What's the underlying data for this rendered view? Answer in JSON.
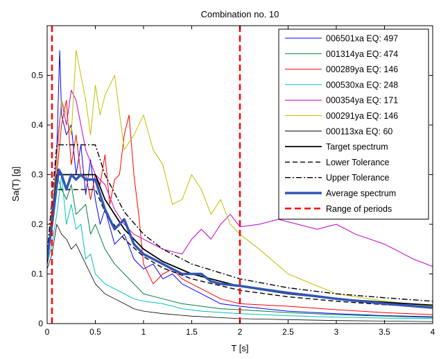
{
  "chart_data": {
    "type": "line",
    "title": "Combination no. 10",
    "xlabel": "T [s]",
    "ylabel": "Sa(T) [g]",
    "xlim": [
      0,
      4
    ],
    "ylim": [
      0,
      0.6
    ],
    "x_ticks": [
      "0",
      "0.5",
      "1",
      "1.5",
      "2",
      "2.5",
      "3",
      "3.5",
      "4"
    ],
    "y_ticks": [
      "0",
      "0.1",
      "0.2",
      "0.3",
      "0.4",
      "0.5"
    ],
    "grid": false,
    "legend_position": "top-right",
    "series": [
      {
        "name": "006501xa EQ: 497",
        "color": "#0000ff",
        "style": "solid",
        "width": 1,
        "x": [
          0,
          0.05,
          0.1,
          0.13,
          0.15,
          0.2,
          0.25,
          0.3,
          0.35,
          0.4,
          0.45,
          0.5,
          0.55,
          0.6,
          0.7,
          0.8,
          0.9,
          1.0,
          1.1,
          1.2,
          1.3,
          1.4,
          1.5,
          1.6,
          1.8,
          2.0,
          2.5,
          3.0,
          3.5,
          4.0
        ],
        "y": [
          0.13,
          0.2,
          0.35,
          0.55,
          0.42,
          0.38,
          0.4,
          0.3,
          0.36,
          0.26,
          0.33,
          0.25,
          0.2,
          0.23,
          0.16,
          0.18,
          0.13,
          0.11,
          0.12,
          0.09,
          0.1,
          0.08,
          0.07,
          0.06,
          0.04,
          0.035,
          0.025,
          0.02,
          0.016,
          0.014
        ]
      },
      {
        "name": "001314ya EQ: 474",
        "color": "#007f40",
        "style": "solid",
        "width": 1,
        "x": [
          0,
          0.05,
          0.1,
          0.15,
          0.2,
          0.25,
          0.3,
          0.35,
          0.4,
          0.45,
          0.5,
          0.6,
          0.7,
          0.8,
          0.9,
          1.0,
          1.2,
          1.4,
          1.6,
          1.8,
          2.0,
          2.5,
          3.0,
          3.5,
          4.0
        ],
        "y": [
          0.13,
          0.2,
          0.3,
          0.27,
          0.25,
          0.28,
          0.22,
          0.23,
          0.24,
          0.18,
          0.2,
          0.15,
          0.12,
          0.1,
          0.08,
          0.06,
          0.05,
          0.04,
          0.035,
          0.03,
          0.028,
          0.022,
          0.018,
          0.015,
          0.012
        ]
      },
      {
        "name": "000289ya EQ: 146",
        "color": "#ff0000",
        "style": "solid",
        "width": 1,
        "x": [
          0,
          0.05,
          0.1,
          0.15,
          0.2,
          0.25,
          0.3,
          0.35,
          0.4,
          0.45,
          0.5,
          0.55,
          0.6,
          0.65,
          0.7,
          0.75,
          0.8,
          0.85,
          0.9,
          0.95,
          1.0,
          1.1,
          1.2,
          1.3,
          1.4,
          1.5,
          1.6,
          1.8,
          2.0,
          2.5,
          3.0,
          3.5,
          4.0
        ],
        "y": [
          0.13,
          0.22,
          0.3,
          0.4,
          0.45,
          0.32,
          0.38,
          0.3,
          0.3,
          0.25,
          0.3,
          0.28,
          0.34,
          0.24,
          0.29,
          0.3,
          0.38,
          0.42,
          0.3,
          0.22,
          0.12,
          0.08,
          0.1,
          0.11,
          0.09,
          0.08,
          0.07,
          0.05,
          0.04,
          0.035,
          0.028,
          0.022,
          0.018
        ]
      },
      {
        "name": "000530xa EQ: 248",
        "color": "#00bfbf",
        "style": "solid",
        "width": 1,
        "x": [
          0,
          0.05,
          0.1,
          0.15,
          0.2,
          0.25,
          0.3,
          0.35,
          0.4,
          0.45,
          0.5,
          0.6,
          0.7,
          0.8,
          0.9,
          1.0,
          1.2,
          1.4,
          1.6,
          2.0,
          2.5,
          3.0,
          3.5,
          4.0
        ],
        "y": [
          0.12,
          0.16,
          0.22,
          0.3,
          0.2,
          0.24,
          0.19,
          0.2,
          0.13,
          0.14,
          0.1,
          0.08,
          0.07,
          0.06,
          0.05,
          0.045,
          0.04,
          0.03,
          0.025,
          0.02,
          0.016,
          0.013,
          0.011,
          0.01
        ]
      },
      {
        "name": "000354ya EQ: 171",
        "color": "#bf00bf",
        "style": "solid",
        "width": 1,
        "x": [
          0,
          0.05,
          0.1,
          0.15,
          0.2,
          0.25,
          0.3,
          0.4,
          0.5,
          0.6,
          0.7,
          0.8,
          0.9,
          1.0,
          1.2,
          1.4,
          1.5,
          1.6,
          1.7,
          1.8,
          1.9,
          2.0,
          2.2,
          2.4,
          2.6,
          2.8,
          3.0,
          3.2,
          3.5,
          3.8,
          4.0
        ],
        "y": [
          0.13,
          0.2,
          0.35,
          0.45,
          0.4,
          0.47,
          0.45,
          0.35,
          0.3,
          0.28,
          0.23,
          0.2,
          0.18,
          0.17,
          0.15,
          0.14,
          0.17,
          0.19,
          0.17,
          0.2,
          0.22,
          0.195,
          0.2,
          0.21,
          0.2,
          0.19,
          0.2,
          0.18,
          0.16,
          0.13,
          0.115
        ]
      },
      {
        "name": "000291ya EQ: 146",
        "color": "#bfbf00",
        "style": "solid",
        "width": 1,
        "x": [
          0,
          0.05,
          0.1,
          0.15,
          0.2,
          0.25,
          0.3,
          0.35,
          0.4,
          0.45,
          0.5,
          0.55,
          0.6,
          0.7,
          0.8,
          0.9,
          1.0,
          1.1,
          1.2,
          1.3,
          1.4,
          1.5,
          1.6,
          1.7,
          1.8,
          1.9,
          2.0,
          2.2,
          2.5,
          3.0,
          3.5,
          4.0
        ],
        "y": [
          0.13,
          0.22,
          0.32,
          0.45,
          0.42,
          0.38,
          0.55,
          0.5,
          0.45,
          0.38,
          0.48,
          0.42,
          0.46,
          0.5,
          0.35,
          0.38,
          0.42,
          0.35,
          0.32,
          0.24,
          0.25,
          0.3,
          0.27,
          0.22,
          0.25,
          0.2,
          0.18,
          0.15,
          0.1,
          0.06,
          0.045,
          0.035
        ]
      },
      {
        "name": "000113xa EQ: 60",
        "color": "#000000",
        "style": "solid",
        "width": 0.8,
        "x": [
          0,
          0.05,
          0.1,
          0.15,
          0.2,
          0.25,
          0.3,
          0.35,
          0.4,
          0.5,
          0.6,
          0.7,
          0.8,
          0.9,
          1.0,
          1.2,
          1.5,
          2.0,
          2.5,
          3.0,
          3.5,
          4.0
        ],
        "y": [
          0.11,
          0.14,
          0.2,
          0.18,
          0.17,
          0.15,
          0.16,
          0.14,
          0.12,
          0.08,
          0.06,
          0.05,
          0.04,
          0.03,
          0.025,
          0.02,
          0.015,
          0.01,
          0.008,
          0.006,
          0.005,
          0.004
        ]
      },
      {
        "name": "Target spectrum",
        "color": "#000000",
        "style": "solid",
        "width": 1.8,
        "x": [
          0,
          0.1,
          0.15,
          0.5,
          0.6,
          0.8,
          1.0,
          1.2,
          1.5,
          2.0,
          2.5,
          3.0,
          3.5,
          4.0
        ],
        "y": [
          0.13,
          0.3,
          0.3,
          0.3,
          0.25,
          0.19,
          0.15,
          0.125,
          0.1,
          0.075,
          0.06,
          0.05,
          0.043,
          0.037
        ]
      },
      {
        "name": "Lower Tolerance",
        "color": "#000000",
        "style": "dashed",
        "width": 1.4,
        "x": [
          0,
          0.1,
          0.15,
          0.5,
          0.6,
          0.8,
          1.0,
          1.2,
          1.5,
          2.0,
          2.5,
          3.0,
          3.5,
          4.0
        ],
        "y": [
          0.12,
          0.27,
          0.27,
          0.27,
          0.225,
          0.17,
          0.135,
          0.112,
          0.09,
          0.067,
          0.054,
          0.045,
          0.038,
          0.033
        ]
      },
      {
        "name": "Upper Tolerance",
        "color": "#000000",
        "style": "dashdot",
        "width": 1.4,
        "x": [
          0,
          0.1,
          0.15,
          0.5,
          0.6,
          0.8,
          1.0,
          1.2,
          1.5,
          2.0,
          2.5,
          3.0,
          3.5,
          4.0
        ],
        "y": [
          0.14,
          0.36,
          0.36,
          0.36,
          0.3,
          0.225,
          0.18,
          0.15,
          0.12,
          0.09,
          0.072,
          0.06,
          0.052,
          0.045
        ]
      },
      {
        "name": "Average spectrum",
        "color": "#3355b5",
        "style": "solid",
        "width": 3.5,
        "x": [
          0,
          0.05,
          0.1,
          0.12,
          0.15,
          0.2,
          0.25,
          0.3,
          0.35,
          0.4,
          0.45,
          0.5,
          0.55,
          0.6,
          0.7,
          0.8,
          0.9,
          1.0,
          1.1,
          1.2,
          1.3,
          1.4,
          1.5,
          1.6,
          1.7,
          1.8,
          1.9,
          2.0,
          2.2,
          2.5,
          2.8,
          3.0,
          3.5,
          4.0
        ],
        "y": [
          0.13,
          0.2,
          0.28,
          0.31,
          0.3,
          0.27,
          0.3,
          0.29,
          0.3,
          0.29,
          0.29,
          0.29,
          0.26,
          0.23,
          0.19,
          0.21,
          0.16,
          0.14,
          0.13,
          0.12,
          0.11,
          0.1,
          0.1,
          0.1,
          0.085,
          0.08,
          0.078,
          0.076,
          0.07,
          0.062,
          0.055,
          0.05,
          0.04,
          0.032
        ]
      },
      {
        "name": "Range of periods",
        "color": "#ff0000",
        "style": "dashed-red",
        "width": 2.5,
        "vertical_lines_x": [
          0.05,
          2.0
        ]
      }
    ]
  }
}
